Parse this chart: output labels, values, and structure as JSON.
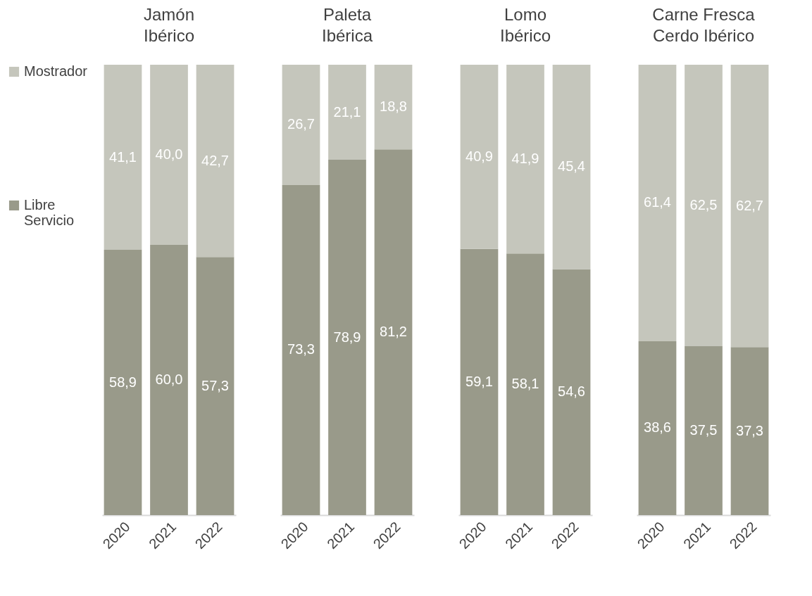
{
  "chart_data": [
    {
      "type": "bar",
      "stacked": true,
      "title": "Jamón\nIbérico",
      "categories": [
        "2020",
        "2021",
        "2022"
      ],
      "legend": "left",
      "series": [
        {
          "name": "Libre Servicio",
          "color": "#999a8a",
          "values": [
            58.9,
            60.0,
            57.3
          ],
          "value_labels": [
            "58,9",
            "60,0",
            "57,3"
          ]
        },
        {
          "name": "Mostrador",
          "color": "#c5c6bc",
          "values": [
            41.1,
            40.0,
            42.7
          ],
          "value_labels": [
            "41,1",
            "40,0",
            "42,7"
          ]
        }
      ]
    },
    {
      "type": "bar",
      "stacked": true,
      "title": "Paleta\nIbérica",
      "categories": [
        "2020",
        "2021",
        "2022"
      ],
      "series": [
        {
          "color": "#999a8a",
          "values": [
            73.3,
            78.9,
            81.2
          ],
          "value_labels": [
            "73,3",
            "78,9",
            "81,2"
          ]
        },
        {
          "color": "#c5c6bc",
          "values": [
            26.7,
            21.1,
            18.8
          ],
          "value_labels": [
            "26,7",
            "21,1",
            "18,8"
          ]
        }
      ]
    },
    {
      "type": "bar",
      "stacked": true,
      "title": "Lomo\nIbérico",
      "categories": [
        "2020",
        "2021",
        "2022"
      ],
      "series": [
        {
          "color": "#999a8a",
          "values": [
            59.1,
            58.1,
            54.6
          ],
          "value_labels": [
            "59,1",
            "58,1",
            "54,6"
          ]
        },
        {
          "color": "#c5c6bc",
          "values": [
            40.9,
            41.9,
            45.4
          ],
          "value_labels": [
            "40,9",
            "41,9",
            "45,4"
          ]
        }
      ]
    },
    {
      "type": "bar",
      "stacked": true,
      "title": "Carne Fresca\nCerdo Ibérico",
      "categories": [
        "2020",
        "2021",
        "2022"
      ],
      "series": [
        {
          "color": "#999a8a",
          "values": [
            38.6,
            37.5,
            37.3
          ],
          "value_labels": [
            "38,6",
            "37,5",
            "37,3"
          ]
        },
        {
          "color": "#c5c6bc",
          "values": [
            61.4,
            62.5,
            62.7
          ],
          "value_labels": [
            "61,4",
            "62,5",
            "62,7"
          ]
        }
      ]
    }
  ]
}
